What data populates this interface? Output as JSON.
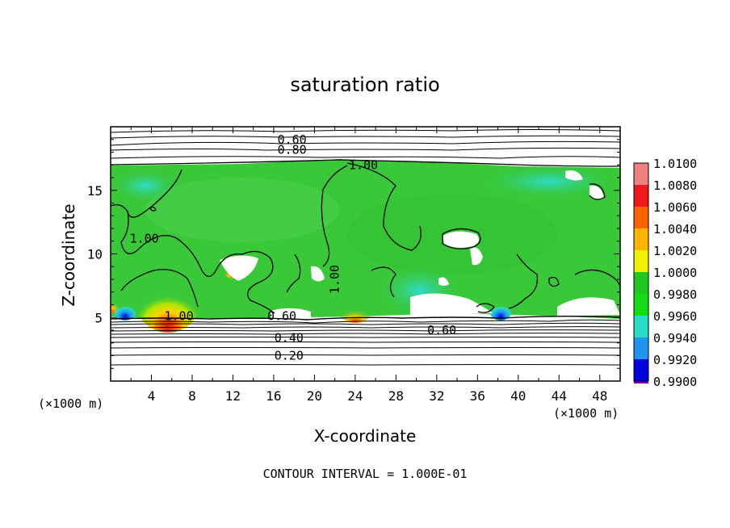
{
  "chart_data": {
    "type": "heatmap",
    "title": "saturation ratio",
    "xlabel": "X-coordinate",
    "ylabel": "Z-coordinate",
    "x_unit_left": "(×1000 m)",
    "x_unit_right": "(×1000 m)",
    "xlim": [
      0,
      50
    ],
    "ylim": [
      0,
      20
    ],
    "x_ticks": [
      4,
      8,
      12,
      16,
      20,
      24,
      28,
      32,
      36,
      40,
      44,
      48
    ],
    "y_ticks": [
      5,
      10,
      15
    ],
    "footer": "CONTOUR INTERVAL = 1.000E-01",
    "colorbar": {
      "levels": [
        "1.0100",
        "1.0080",
        "1.0060",
        "1.0040",
        "1.0020",
        "1.0000",
        "0.9980",
        "0.9960",
        "0.9940",
        "0.9920",
        "0.9900"
      ],
      "colors": [
        "#f08080",
        "#f01818",
        "#ff6400",
        "#ffb400",
        "#f0f000",
        "#1ec81e",
        "#14dc14",
        "#28dcc8",
        "#1e96f0",
        "#0000dc",
        "#7800b4"
      ]
    },
    "contour_labels": [
      {
        "text": "0.60",
        "x": 17.8,
        "y": 19.0
      },
      {
        "text": "0.80",
        "x": 17.8,
        "y": 18.2
      },
      {
        "text": "1.00",
        "x": 24.8,
        "y": 17.0
      },
      {
        "text": "1.00",
        "x": 3.3,
        "y": 11.2
      },
      {
        "text": "1.00",
        "x": 6.7,
        "y": 5.1
      },
      {
        "text": "1.00",
        "x": 22.0,
        "y": 8.0
      },
      {
        "text": "0.60",
        "x": 16.8,
        "y": 5.1
      },
      {
        "text": "0.60",
        "x": 32.5,
        "y": 4.0
      },
      {
        "text": "0.40",
        "x": 17.5,
        "y": 3.4
      },
      {
        "text": "0.20",
        "x": 17.5,
        "y": 2.0
      }
    ],
    "colors": {
      "field_background": "#38c838",
      "bright_green": "#22d022",
      "plot_frame": "#000000"
    }
  }
}
